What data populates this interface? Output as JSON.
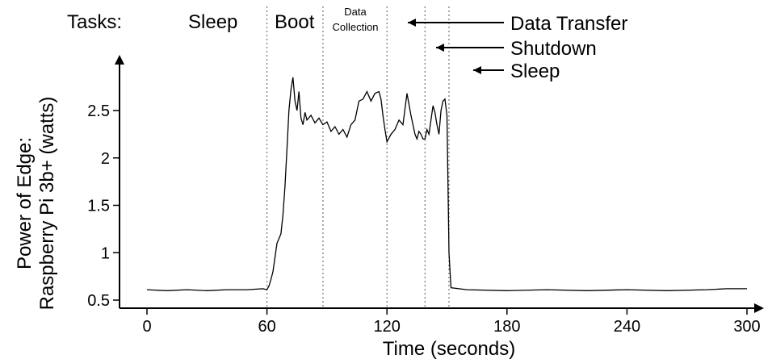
{
  "chart_data": {
    "type": "line",
    "xlabel": "Time (seconds)",
    "ylabel_line1": "Power of Edge:",
    "ylabel_line2": "Raspberry Pi 3b+ (watts)",
    "xticks": [
      0,
      60,
      120,
      180,
      240,
      300
    ],
    "yticks": [
      0.5,
      1,
      1.5,
      2,
      2.5
    ],
    "ytick_labels": [
      "0.5",
      "1",
      "1.5",
      "2",
      "2.5"
    ],
    "xlim": [
      -15,
      310
    ],
    "ylim": [
      0.45,
      2.95
    ],
    "phase_boundaries": [
      60,
      88,
      120,
      139,
      151
    ],
    "tasks_label": "Tasks:",
    "phase_labels": {
      "sleep1": "Sleep",
      "boot": "Boot",
      "data_collection_line1": "Data",
      "data_collection_line2": "Collection"
    },
    "annotations": {
      "data_transfer": "Data Transfer",
      "shutdown": "Shutdown",
      "sleep2": "Sleep"
    },
    "series": [
      {
        "x": [
          0,
          10,
          20,
          30,
          40,
          50,
          58,
          60,
          61,
          62,
          63,
          64,
          65,
          66,
          67,
          68,
          69,
          70,
          71,
          72,
          73,
          74,
          75,
          76,
          77,
          78,
          79,
          80,
          82,
          84,
          86,
          88,
          90,
          92,
          94,
          96,
          98,
          100,
          102,
          104,
          106,
          108,
          110,
          112,
          114,
          116,
          117,
          118,
          119,
          120,
          122,
          124,
          126,
          128,
          130,
          132,
          134,
          135,
          136,
          137,
          138,
          139,
          140,
          141,
          142,
          143,
          144,
          145,
          146,
          147,
          148,
          149,
          150,
          151,
          152,
          160,
          180,
          200,
          220,
          240,
          260,
          280,
          290,
          300
        ],
        "y": [
          0.61,
          0.6,
          0.61,
          0.6,
          0.61,
          0.61,
          0.62,
          0.61,
          0.65,
          0.72,
          0.8,
          0.95,
          1.1,
          1.15,
          1.2,
          1.4,
          1.7,
          2.1,
          2.5,
          2.72,
          2.85,
          2.6,
          2.5,
          2.7,
          2.42,
          2.35,
          2.48,
          2.4,
          2.45,
          2.37,
          2.42,
          2.35,
          2.38,
          2.28,
          2.33,
          2.25,
          2.3,
          2.22,
          2.35,
          2.4,
          2.6,
          2.62,
          2.7,
          2.6,
          2.68,
          2.7,
          2.62,
          2.45,
          2.3,
          2.17,
          2.25,
          2.3,
          2.4,
          2.35,
          2.68,
          2.45,
          2.25,
          2.2,
          2.28,
          2.25,
          2.2,
          2.2,
          2.3,
          2.25,
          2.4,
          2.55,
          2.48,
          2.35,
          2.25,
          2.5,
          2.6,
          2.62,
          2.45,
          1.0,
          0.63,
          0.61,
          0.6,
          0.61,
          0.6,
          0.61,
          0.6,
          0.61,
          0.62,
          0.62
        ]
      }
    ]
  }
}
